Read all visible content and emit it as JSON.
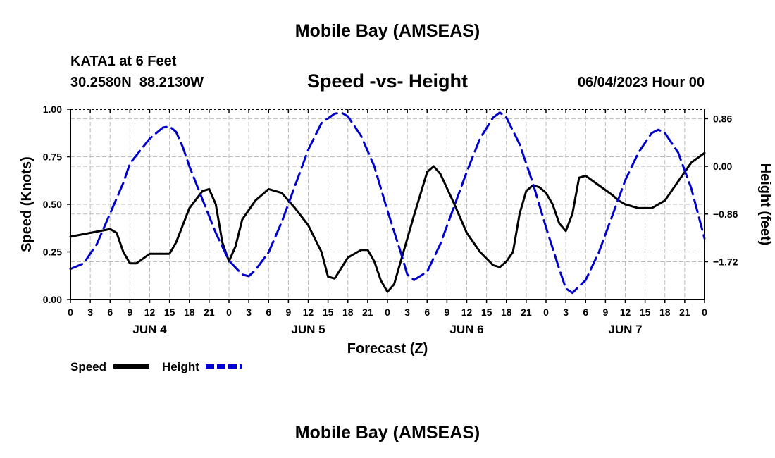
{
  "page": {
    "title_top": "Mobile Bay (AMSEAS)",
    "title_bottom": "Mobile Bay (AMSEAS)",
    "station": "KATA1 at 6 Feet",
    "coords": "30.2580N  88.2130W",
    "plot_title": "Speed -vs- Height",
    "datetime": "06/04/2023 Hour 00"
  },
  "legend": {
    "speed_label": "Speed",
    "height_label": "Height"
  },
  "colors": {
    "speed": "#000000",
    "height": "#0000cc",
    "grid": "#bbbbbb"
  },
  "chart_data": {
    "type": "line",
    "xlabel": "Forecast (Z)",
    "ylabel": "Speed (Knots)",
    "y2label": "Height (feet)",
    "xlim": [
      0,
      96
    ],
    "ylim": [
      0,
      1
    ],
    "y2lim": [
      -2.4,
      1.03
    ],
    "x_tick_labels": [
      "0",
      "3",
      "6",
      "9",
      "12",
      "15",
      "18",
      "21",
      "0",
      "3",
      "6",
      "9",
      "12",
      "15",
      "18",
      "21",
      "0",
      "3",
      "6",
      "9",
      "12",
      "15",
      "18",
      "21",
      "0",
      "3",
      "6",
      "9",
      "12",
      "15",
      "18",
      "21",
      "0"
    ],
    "day_labels": [
      {
        "x": 12,
        "label": "JUN 4"
      },
      {
        "x": 36,
        "label": "JUN 5"
      },
      {
        "x": 60,
        "label": "JUN 6"
      },
      {
        "x": 84,
        "label": "JUN 7"
      }
    ],
    "y_ticks": [
      0,
      0.25,
      0.5,
      0.75,
      1.0
    ],
    "y_tick_labels": [
      "0.00",
      "0.25",
      "0.50",
      "0.75",
      "1.00"
    ],
    "y2_ticks": [
      -1.72,
      -0.86,
      0.0,
      0.86
    ],
    "y2_tick_labels": [
      "−1.72",
      "−0.86",
      "0.00",
      "0.86"
    ],
    "grid": true,
    "series": [
      {
        "name": "Speed",
        "axis": "left",
        "style": "solid",
        "points": [
          [
            0,
            0.33
          ],
          [
            3,
            0.35
          ],
          [
            6,
            0.37
          ],
          [
            7,
            0.35
          ],
          [
            8,
            0.25
          ],
          [
            9,
            0.19
          ],
          [
            10,
            0.19
          ],
          [
            12,
            0.24
          ],
          [
            14,
            0.24
          ],
          [
            15,
            0.24
          ],
          [
            16,
            0.3
          ],
          [
            18,
            0.48
          ],
          [
            20,
            0.57
          ],
          [
            21,
            0.58
          ],
          [
            22,
            0.5
          ],
          [
            23,
            0.3
          ],
          [
            24,
            0.2
          ],
          [
            25,
            0.28
          ],
          [
            26,
            0.42
          ],
          [
            28,
            0.52
          ],
          [
            30,
            0.58
          ],
          [
            32,
            0.56
          ],
          [
            34,
            0.48
          ],
          [
            36,
            0.39
          ],
          [
            38,
            0.25
          ],
          [
            39,
            0.12
          ],
          [
            40,
            0.11
          ],
          [
            42,
            0.22
          ],
          [
            44,
            0.26
          ],
          [
            45,
            0.26
          ],
          [
            46,
            0.2
          ],
          [
            47,
            0.1
          ],
          [
            48,
            0.04
          ],
          [
            49,
            0.08
          ],
          [
            50,
            0.2
          ],
          [
            52,
            0.44
          ],
          [
            54,
            0.67
          ],
          [
            55,
            0.7
          ],
          [
            56,
            0.66
          ],
          [
            58,
            0.51
          ],
          [
            60,
            0.35
          ],
          [
            62,
            0.25
          ],
          [
            64,
            0.18
          ],
          [
            65,
            0.17
          ],
          [
            66,
            0.2
          ],
          [
            67,
            0.25
          ],
          [
            68,
            0.45
          ],
          [
            69,
            0.57
          ],
          [
            70,
            0.6
          ],
          [
            71,
            0.59
          ],
          [
            72,
            0.56
          ],
          [
            73,
            0.5
          ],
          [
            74,
            0.4
          ],
          [
            75,
            0.36
          ],
          [
            76,
            0.45
          ],
          [
            77,
            0.64
          ],
          [
            78,
            0.65
          ],
          [
            80,
            0.6
          ],
          [
            82,
            0.55
          ],
          [
            83,
            0.52
          ],
          [
            84,
            0.5
          ],
          [
            86,
            0.48
          ],
          [
            88,
            0.48
          ],
          [
            90,
            0.52
          ],
          [
            92,
            0.62
          ],
          [
            94,
            0.72
          ],
          [
            96,
            0.77
          ]
        ]
      },
      {
        "name": "Height",
        "axis": "right",
        "style": "dashed",
        "points": [
          [
            0,
            -1.85
          ],
          [
            2,
            -1.75
          ],
          [
            4,
            -1.4
          ],
          [
            6,
            -0.85
          ],
          [
            8,
            -0.3
          ],
          [
            9,
            0.05
          ],
          [
            10,
            0.2
          ],
          [
            12,
            0.5
          ],
          [
            14,
            0.7
          ],
          [
            15,
            0.72
          ],
          [
            16,
            0.62
          ],
          [
            17,
            0.35
          ],
          [
            18,
            0.0
          ],
          [
            20,
            -0.6
          ],
          [
            22,
            -1.2
          ],
          [
            24,
            -1.7
          ],
          [
            26,
            -1.95
          ],
          [
            27,
            -1.98
          ],
          [
            28,
            -1.87
          ],
          [
            30,
            -1.55
          ],
          [
            32,
            -1.0
          ],
          [
            34,
            -0.35
          ],
          [
            36,
            0.3
          ],
          [
            38,
            0.78
          ],
          [
            40,
            0.95
          ],
          [
            41,
            0.97
          ],
          [
            42,
            0.9
          ],
          [
            44,
            0.55
          ],
          [
            46,
            0.0
          ],
          [
            48,
            -0.8
          ],
          [
            50,
            -1.55
          ],
          [
            51,
            -1.95
          ],
          [
            52,
            -2.05
          ],
          [
            54,
            -1.9
          ],
          [
            56,
            -1.4
          ],
          [
            58,
            -0.75
          ],
          [
            60,
            -0.1
          ],
          [
            62,
            0.5
          ],
          [
            64,
            0.88
          ],
          [
            65,
            0.97
          ],
          [
            66,
            0.88
          ],
          [
            68,
            0.4
          ],
          [
            70,
            -0.3
          ],
          [
            72,
            -1.1
          ],
          [
            74,
            -1.85
          ],
          [
            75,
            -2.2
          ],
          [
            76,
            -2.28
          ],
          [
            78,
            -2.05
          ],
          [
            80,
            -1.55
          ],
          [
            82,
            -0.9
          ],
          [
            84,
            -0.25
          ],
          [
            86,
            0.25
          ],
          [
            88,
            0.6
          ],
          [
            89,
            0.66
          ],
          [
            90,
            0.6
          ],
          [
            92,
            0.25
          ],
          [
            94,
            -0.4
          ],
          [
            96,
            -1.3
          ]
        ]
      }
    ]
  }
}
